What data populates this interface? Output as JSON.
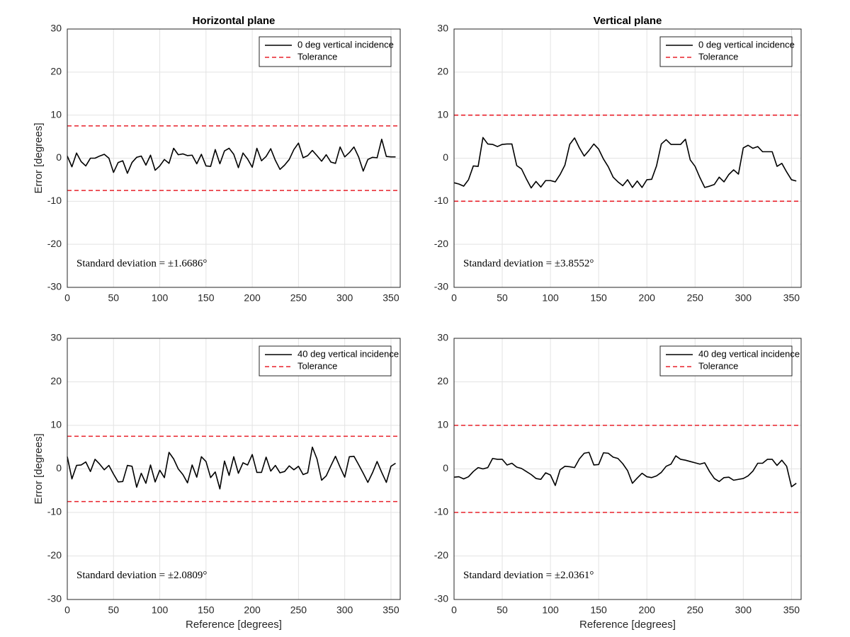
{
  "chart_data": [
    {
      "type": "line",
      "title": "Horizontal plane",
      "ylabel": "Error [degrees]",
      "x": [
        0,
        5,
        10,
        15,
        20,
        25,
        30,
        35,
        40,
        45,
        50,
        55,
        60,
        65,
        70,
        75,
        80,
        85,
        90,
        95,
        100,
        105,
        110,
        115,
        120,
        125,
        130,
        135,
        140,
        145,
        150,
        155,
        160,
        165,
        170,
        175,
        180,
        185,
        190,
        195,
        200,
        205,
        210,
        215,
        220,
        225,
        230,
        235,
        240,
        245,
        250,
        255,
        260,
        265,
        270,
        275,
        280,
        285,
        290,
        295,
        300,
        305,
        310,
        315,
        320,
        325,
        330,
        335,
        340,
        345,
        350,
        355
      ],
      "series": [
        {
          "name": "0 deg vertical incidence",
          "color": "#000000",
          "values": [
            0.5,
            -2,
            1.2,
            -0.8,
            -1.8,
            0,
            0,
            0.5,
            0.9,
            0,
            -3.3,
            -1,
            -0.6,
            -3.5,
            -1,
            0.2,
            0.5,
            -1.6,
            0.7,
            -2.8,
            -1.8,
            -0.3,
            -1.2,
            2.3,
            0.8,
            1,
            0.6,
            0.7,
            -1.3,
            0.9,
            -1.8,
            -1.9,
            2,
            -1.3,
            1.7,
            2.3,
            0.9,
            -2.2,
            1.2,
            -0.2,
            -2.1,
            2.3,
            -0.6,
            0.4,
            2.2,
            -0.5,
            -2.6,
            -1.6,
            -0.3,
            2,
            3.5,
            0.1,
            0.6,
            1.8,
            0.6,
            -0.7,
            0.8,
            -0.9,
            -1.2,
            2.6,
            0.3,
            1.3,
            2.6,
            0.3,
            -3,
            -0.3,
            0.2,
            0.1,
            4.4,
            0.4,
            0.3,
            0.3
          ]
        }
      ],
      "tolerance": {
        "name": "Tolerance",
        "color": "#e8202a",
        "style": "dashed",
        "levels": [
          7.5,
          -7.5
        ]
      },
      "annotation": "Standard deviation = ±1.6686°",
      "xlim": [
        0,
        360
      ],
      "xticks": [
        0,
        50,
        100,
        150,
        200,
        250,
        300,
        350
      ],
      "ylim": [
        -30,
        30
      ],
      "yticks": [
        -30,
        -20,
        -10,
        0,
        10,
        20,
        30
      ],
      "grid": true,
      "legend": "northeast"
    },
    {
      "type": "line",
      "title": "Vertical plane",
      "x": [
        0,
        5,
        10,
        15,
        20,
        25,
        30,
        35,
        40,
        45,
        50,
        55,
        60,
        65,
        70,
        75,
        80,
        85,
        90,
        95,
        100,
        105,
        110,
        115,
        120,
        125,
        130,
        135,
        140,
        145,
        150,
        155,
        160,
        165,
        170,
        175,
        180,
        185,
        190,
        195,
        200,
        205,
        210,
        215,
        220,
        225,
        230,
        235,
        240,
        245,
        250,
        255,
        260,
        265,
        270,
        275,
        280,
        285,
        290,
        295,
        300,
        305,
        310,
        315,
        320,
        325,
        330,
        335,
        340,
        345,
        350,
        355
      ],
      "series": [
        {
          "name": "0 deg vertical incidence",
          "color": "#000000",
          "values": [
            -5.7,
            -6,
            -6.5,
            -5,
            -1.8,
            -1.9,
            4.8,
            3.3,
            3.2,
            2.7,
            3.2,
            3.3,
            3.3,
            -1.7,
            -2.5,
            -4.8,
            -6.9,
            -5.4,
            -6.7,
            -5.2,
            -5.2,
            -5.5,
            -3.8,
            -1.6,
            3.2,
            4.7,
            2.4,
            0.5,
            1.8,
            3.3,
            2.1,
            -0.2,
            -2,
            -4.4,
            -5.5,
            -6.4,
            -5,
            -6.8,
            -5.3,
            -6.8,
            -5,
            -4.9,
            -1.8,
            3.3,
            4.3,
            3.2,
            3.2,
            3.2,
            4.4,
            -0.4,
            -1.9,
            -4.5,
            -6.8,
            -6.5,
            -6.1,
            -4.4,
            -5.5,
            -3.8,
            -2.7,
            -3.7,
            2.4,
            3,
            2.3,
            2.7,
            1.5,
            1.5,
            1.5,
            -1.9,
            -1.2,
            -3.2,
            -5,
            -5.3
          ]
        }
      ],
      "tolerance": {
        "name": "Tolerance",
        "color": "#e8202a",
        "style": "dashed",
        "levels": [
          10,
          -10
        ]
      },
      "annotation": "Standard deviation = ±3.8552°",
      "xlim": [
        0,
        360
      ],
      "xticks": [
        0,
        50,
        100,
        150,
        200,
        250,
        300,
        350
      ],
      "ylim": [
        -30,
        30
      ],
      "yticks": [
        -30,
        -20,
        -10,
        0,
        10,
        20,
        30
      ],
      "grid": true,
      "legend": "northeast"
    },
    {
      "type": "line",
      "ylabel": "Error [degrees]",
      "xlabel": "Reference [degrees]",
      "x": [
        0,
        5,
        10,
        15,
        20,
        25,
        30,
        35,
        40,
        45,
        50,
        55,
        60,
        65,
        70,
        75,
        80,
        85,
        90,
        95,
        100,
        105,
        110,
        115,
        120,
        125,
        130,
        135,
        140,
        145,
        150,
        155,
        160,
        165,
        170,
        175,
        180,
        185,
        190,
        195,
        200,
        205,
        210,
        215,
        220,
        225,
        230,
        235,
        240,
        245,
        250,
        255,
        260,
        265,
        270,
        275,
        280,
        285,
        290,
        295,
        300,
        305,
        310,
        315,
        320,
        325,
        330,
        335,
        340,
        345,
        350,
        355
      ],
      "series": [
        {
          "name": "40 deg vertical incidence",
          "color": "#000000",
          "values": [
            2.8,
            -2.3,
            0.8,
            0.9,
            1.6,
            -0.6,
            2.2,
            1.1,
            -0.2,
            0.8,
            -1.2,
            -3,
            -2.9,
            0.8,
            0.6,
            -4.2,
            -1,
            -3.3,
            0.9,
            -3,
            -0.3,
            -2,
            3.8,
            2.3,
            0,
            -1.3,
            -3.2,
            0.9,
            -1.9,
            2.8,
            1.7,
            -2,
            -0.7,
            -4.6,
            1.8,
            -1.5,
            2.8,
            -1,
            1.4,
            0.9,
            3.3,
            -0.8,
            -0.8,
            2.7,
            -0.5,
            0.8,
            -0.9,
            -0.6,
            0.7,
            -0.2,
            0.6,
            -1.3,
            -0.9,
            5,
            2.3,
            -2.6,
            -1.6,
            0.7,
            2.9,
            0.4,
            -1.9,
            2.8,
            2.9,
            1,
            -1,
            -3.1,
            -0.9,
            1.7,
            -0.8,
            -3.1,
            0.6,
            1.3
          ]
        }
      ],
      "tolerance": {
        "name": "Tolerance",
        "color": "#e8202a",
        "style": "dashed",
        "levels": [
          7.5,
          -7.5
        ]
      },
      "annotation": "Standard deviation = ±2.0809°",
      "xlim": [
        0,
        360
      ],
      "xticks": [
        0,
        50,
        100,
        150,
        200,
        250,
        300,
        350
      ],
      "ylim": [
        -30,
        30
      ],
      "yticks": [
        -30,
        -20,
        -10,
        0,
        10,
        20,
        30
      ],
      "grid": true,
      "legend": "northeast"
    },
    {
      "type": "line",
      "xlabel": "Reference [degrees]",
      "x": [
        0,
        5,
        10,
        15,
        20,
        25,
        30,
        35,
        40,
        45,
        50,
        55,
        60,
        65,
        70,
        75,
        80,
        85,
        90,
        95,
        100,
        105,
        110,
        115,
        120,
        125,
        130,
        135,
        140,
        145,
        150,
        155,
        160,
        165,
        170,
        175,
        180,
        185,
        190,
        195,
        200,
        205,
        210,
        215,
        220,
        225,
        230,
        235,
        240,
        245,
        250,
        255,
        260,
        265,
        270,
        275,
        280,
        285,
        290,
        295,
        300,
        305,
        310,
        315,
        320,
        325,
        330,
        335,
        340,
        345,
        350,
        355
      ],
      "series": [
        {
          "name": "40 deg vertical incidence",
          "color": "#000000",
          "values": [
            -1.9,
            -1.8,
            -2.3,
            -1.8,
            -0.6,
            0.3,
            0,
            0.3,
            2.4,
            2.2,
            2.2,
            0.9,
            1.3,
            0.4,
            0.1,
            -0.6,
            -1.3,
            -2.2,
            -2.4,
            -0.9,
            -1.4,
            -3.8,
            -0.2,
            0.6,
            0.5,
            0.3,
            2.3,
            3.6,
            3.8,
            0.9,
            1,
            3.7,
            3.6,
            2.7,
            2.4,
            1.2,
            -0.4,
            -3.3,
            -2.1,
            -1,
            -1.8,
            -2,
            -1.6,
            -0.8,
            0.6,
            1.1,
            3,
            2.2,
            2,
            1.7,
            1.4,
            1.1,
            1.4,
            -0.6,
            -2.2,
            -2.9,
            -2,
            -1.9,
            -2.6,
            -2.4,
            -2.2,
            -1.6,
            -0.5,
            1.3,
            1.3,
            2.2,
            2.2,
            0.8,
            2,
            0.6,
            -4.1,
            -3.3
          ]
        }
      ],
      "tolerance": {
        "name": "Tolerance",
        "color": "#e8202a",
        "style": "dashed",
        "levels": [
          10,
          -10
        ]
      },
      "annotation": "Standard deviation = ±2.0361°",
      "xlim": [
        0,
        360
      ],
      "xticks": [
        0,
        50,
        100,
        150,
        200,
        250,
        300,
        350
      ],
      "ylim": [
        -30,
        30
      ],
      "yticks": [
        -30,
        -20,
        -10,
        0,
        10,
        20,
        30
      ],
      "grid": true,
      "legend": "northeast"
    }
  ]
}
